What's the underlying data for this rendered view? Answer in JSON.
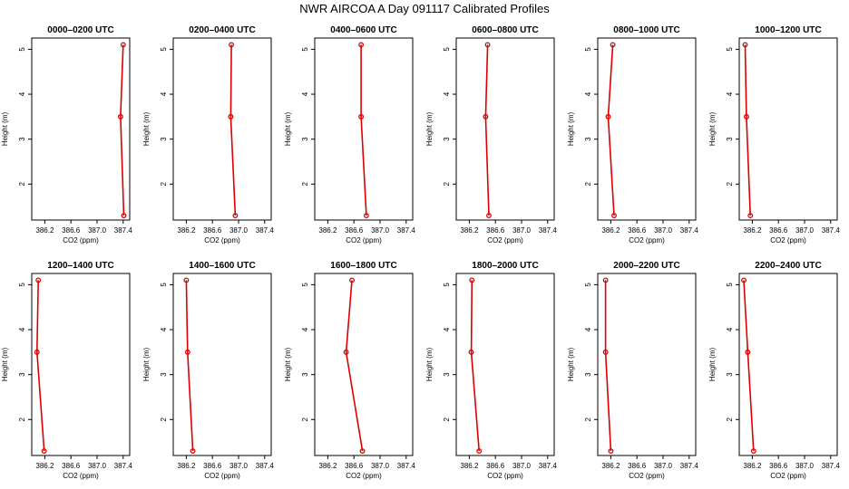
{
  "title": "NWR AIRCOA A  Day 091117  Calibrated Profiles",
  "colors": {
    "series": "#dd0000",
    "axis": "#000000",
    "background": "#ffffff"
  },
  "chart_data": [
    {
      "type": "line",
      "title": "0000–0200 UTC",
      "xlabel": "CO2 (ppm)",
      "ylabel": "Height (m)",
      "xlim": [
        386.0,
        387.5
      ],
      "ylim": [
        1.2,
        5.25
      ],
      "xticks": [
        "386.2",
        "386.6",
        "387.0",
        "387.4"
      ],
      "yticks": [
        "2",
        "3",
        "4",
        "5"
      ],
      "x": [
        387.4,
        387.36,
        387.41
      ],
      "y": [
        5.1,
        3.5,
        1.3
      ]
    },
    {
      "type": "line",
      "title": "0200–0400 UTC",
      "xlabel": "CO2 (ppm)",
      "ylabel": "Height (m)",
      "xlim": [
        386.0,
        387.5
      ],
      "ylim": [
        1.2,
        5.25
      ],
      "xticks": [
        "386.2",
        "386.6",
        "387.0",
        "387.4"
      ],
      "yticks": [
        "2",
        "3",
        "4",
        "5"
      ],
      "x": [
        386.89,
        386.88,
        386.95
      ],
      "y": [
        5.1,
        3.5,
        1.3
      ]
    },
    {
      "type": "line",
      "title": "0400–0600 UTC",
      "xlabel": "CO2 (ppm)",
      "ylabel": "Height (m)",
      "xlim": [
        386.0,
        387.5
      ],
      "ylim": [
        1.2,
        5.25
      ],
      "xticks": [
        "386.2",
        "386.6",
        "387.0",
        "387.4"
      ],
      "yticks": [
        "2",
        "3",
        "4",
        "5"
      ],
      "x": [
        386.71,
        386.71,
        386.79
      ],
      "y": [
        5.1,
        3.5,
        1.3
      ]
    },
    {
      "type": "line",
      "title": "0600–0800 UTC",
      "xlabel": "CO2 (ppm)",
      "ylabel": "Height (m)",
      "xlim": [
        386.0,
        387.5
      ],
      "ylim": [
        1.2,
        5.25
      ],
      "xticks": [
        "386.2",
        "386.6",
        "387.0",
        "387.4"
      ],
      "yticks": [
        "2",
        "3",
        "4",
        "5"
      ],
      "x": [
        386.48,
        386.45,
        386.5
      ],
      "y": [
        5.1,
        3.5,
        1.3
      ]
    },
    {
      "type": "line",
      "title": "0800–1000 UTC",
      "xlabel": "CO2 (ppm)",
      "ylabel": "Height (m)",
      "xlim": [
        386.0,
        387.5
      ],
      "ylim": [
        1.2,
        5.25
      ],
      "xticks": [
        "386.2",
        "386.6",
        "387.0",
        "387.4"
      ],
      "yticks": [
        "2",
        "3",
        "4",
        "5"
      ],
      "x": [
        386.23,
        386.16,
        386.25
      ],
      "y": [
        5.1,
        3.5,
        1.3
      ]
    },
    {
      "type": "line",
      "title": "1000–1200 UTC",
      "xlabel": "CO2 (ppm)",
      "ylabel": "Height (m)",
      "xlim": [
        386.0,
        387.5
      ],
      "ylim": [
        1.2,
        5.25
      ],
      "xticks": [
        "386.2",
        "386.6",
        "387.0",
        "387.4"
      ],
      "yticks": [
        "2",
        "3",
        "4",
        "5"
      ],
      "x": [
        386.09,
        386.11,
        386.17
      ],
      "y": [
        5.1,
        3.5,
        1.3
      ]
    },
    {
      "type": "line",
      "title": "1200–1400 UTC",
      "xlabel": "CO2 (ppm)",
      "ylabel": "Height (m)",
      "xlim": [
        386.0,
        387.5
      ],
      "ylim": [
        1.2,
        5.25
      ],
      "xticks": [
        "386.2",
        "386.6",
        "387.0",
        "387.4"
      ],
      "yticks": [
        "2",
        "3",
        "4",
        "5"
      ],
      "x": [
        386.1,
        386.08,
        386.19
      ],
      "y": [
        5.1,
        3.5,
        1.3
      ]
    },
    {
      "type": "line",
      "title": "1400–1600 UTC",
      "xlabel": "CO2 (ppm)",
      "ylabel": "Height (m)",
      "xlim": [
        386.0,
        387.5
      ],
      "ylim": [
        1.2,
        5.25
      ],
      "xticks": [
        "386.2",
        "386.6",
        "387.0",
        "387.4"
      ],
      "yticks": [
        "2",
        "3",
        "4",
        "5"
      ],
      "x": [
        386.2,
        386.22,
        386.3
      ],
      "y": [
        5.1,
        3.5,
        1.3
      ]
    },
    {
      "type": "line",
      "title": "1600–1800 UTC",
      "xlabel": "CO2 (ppm)",
      "ylabel": "Height (m)",
      "xlim": [
        386.0,
        387.5
      ],
      "ylim": [
        1.2,
        5.25
      ],
      "xticks": [
        "386.2",
        "386.6",
        "387.0",
        "387.4"
      ],
      "yticks": [
        "2",
        "3",
        "4",
        "5"
      ],
      "x": [
        386.57,
        386.48,
        386.73
      ],
      "y": [
        5.1,
        3.5,
        1.3
      ]
    },
    {
      "type": "line",
      "title": "1800–2000 UTC",
      "xlabel": "CO2 (ppm)",
      "ylabel": "Height (m)",
      "xlim": [
        386.0,
        387.5
      ],
      "ylim": [
        1.2,
        5.25
      ],
      "xticks": [
        "386.2",
        "386.6",
        "387.0",
        "387.4"
      ],
      "yticks": [
        "2",
        "3",
        "4",
        "5"
      ],
      "x": [
        386.24,
        386.23,
        386.35
      ],
      "y": [
        5.1,
        3.5,
        1.3
      ]
    },
    {
      "type": "line",
      "title": "2000–2200 UTC",
      "xlabel": "CO2 (ppm)",
      "ylabel": "Height (m)",
      "xlim": [
        386.0,
        387.5
      ],
      "ylim": [
        1.2,
        5.25
      ],
      "xticks": [
        "386.2",
        "386.6",
        "387.0",
        "387.4"
      ],
      "yticks": [
        "2",
        "3",
        "4",
        "5"
      ],
      "x": [
        386.12,
        386.12,
        386.2
      ],
      "y": [
        5.1,
        3.5,
        1.3
      ]
    },
    {
      "type": "line",
      "title": "2200–2400 UTC",
      "xlabel": "CO2 (ppm)",
      "ylabel": "Height (m)",
      "xlim": [
        386.0,
        387.5
      ],
      "ylim": [
        1.2,
        5.25
      ],
      "xticks": [
        "386.2",
        "386.6",
        "387.0",
        "387.4"
      ],
      "yticks": [
        "2",
        "3",
        "4",
        "5"
      ],
      "x": [
        386.07,
        386.13,
        386.22
      ],
      "y": [
        5.1,
        3.5,
        1.3
      ]
    }
  ]
}
